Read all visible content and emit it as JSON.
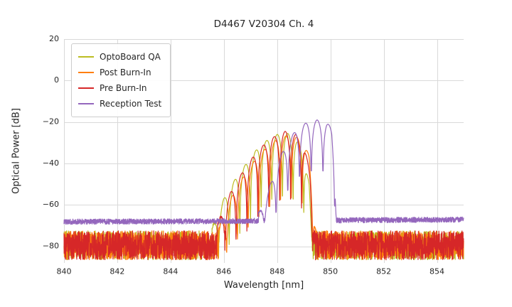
{
  "chart_data": {
    "type": "line",
    "title": "D4467 V20304 Ch. 4",
    "xlabel": "Wavelength [nm]",
    "ylabel": "Optical Power [dB]",
    "xlim": [
      840,
      855
    ],
    "ylim": [
      -88,
      20
    ],
    "xticks": [
      840,
      842,
      844,
      846,
      848,
      850,
      852,
      854
    ],
    "yticks": [
      20,
      0,
      -20,
      -40,
      -60,
      -80
    ],
    "grid": true,
    "grid_color": "#d9d9d9",
    "legend_position": "upper-left",
    "series": [
      {
        "label": "OptoBoard QA",
        "color": "#bcbd22",
        "noise": {
          "base": -79.5,
          "amplitude": 7,
          "seed": 11
        },
        "spectrum": {
          "range": [
            845.55,
            849.32
          ],
          "mode_spacing": 0.4,
          "mode_phase": 848.0,
          "notch_depth": 30,
          "envelope": [
            [
              845.55,
              -72
            ],
            [
              846.0,
              -57
            ],
            [
              846.45,
              -47
            ],
            [
              846.9,
              -39
            ],
            [
              847.3,
              -32
            ],
            [
              847.7,
              -28
            ],
            [
              848.0,
              -26
            ],
            [
              848.4,
              -25.5
            ],
            [
              848.7,
              -28
            ],
            [
              849.0,
              -34
            ],
            [
              849.2,
              -50
            ],
            [
              849.32,
              -80
            ]
          ]
        }
      },
      {
        "label": "Post Burn-In",
        "color": "#ff7f0e",
        "noise": {
          "base": -79.5,
          "amplitude": 7,
          "seed": 22
        },
        "spectrum": {
          "range": [
            845.8,
            849.5
          ],
          "mode_spacing": 0.405,
          "mode_phase": 848.33,
          "notch_depth": 30,
          "envelope": [
            [
              845.8,
              -72
            ],
            [
              846.3,
              -56
            ],
            [
              846.8,
              -45
            ],
            [
              847.3,
              -36
            ],
            [
              847.8,
              -30
            ],
            [
              848.2,
              -27
            ],
            [
              848.5,
              -26.5
            ],
            [
              848.9,
              -28
            ],
            [
              849.2,
              -36
            ],
            [
              849.5,
              -79
            ]
          ]
        }
      },
      {
        "label": "Pre Burn-In",
        "color": "#d62728",
        "noise": {
          "base": -79.5,
          "amplitude": 7,
          "seed": 33
        },
        "spectrum": {
          "range": [
            845.75,
            849.42
          ],
          "mode_spacing": 0.41,
          "mode_phase": 848.3,
          "notch_depth": 32,
          "envelope": [
            [
              845.75,
              -70
            ],
            [
              846.25,
              -54
            ],
            [
              846.75,
              -43
            ],
            [
              847.25,
              -34
            ],
            [
              847.75,
              -28
            ],
            [
              848.3,
              -24.5
            ],
            [
              848.7,
              -26
            ],
            [
              849.0,
              -31
            ],
            [
              849.25,
              -45
            ],
            [
              849.42,
              -81
            ]
          ]
        }
      },
      {
        "label": "Reception Test",
        "color": "#9467bd",
        "noise": {
          "base": -67.6,
          "amplitude": 1.3,
          "seed": 44,
          "slope": [
            [
              840,
              -68.1
            ],
            [
              846,
              -67.9
            ],
            [
              848,
              -67.6
            ],
            [
              855,
              -67.1
            ]
          ]
        },
        "spectrum": {
          "range": [
            847.3,
            850.22
          ],
          "mode_spacing": 0.44,
          "mode_phase": 849.5,
          "notch_depth": 24,
          "envelope": [
            [
              847.3,
              -66
            ],
            [
              847.7,
              -52
            ],
            [
              848.0,
              -40
            ],
            [
              848.4,
              -29
            ],
            [
              848.8,
              -22.5
            ],
            [
              849.15,
              -20
            ],
            [
              849.5,
              -19
            ],
            [
              849.85,
              -20
            ],
            [
              850.05,
              -23
            ],
            [
              850.18,
              -40
            ],
            [
              850.22,
              -67
            ]
          ]
        }
      }
    ]
  }
}
